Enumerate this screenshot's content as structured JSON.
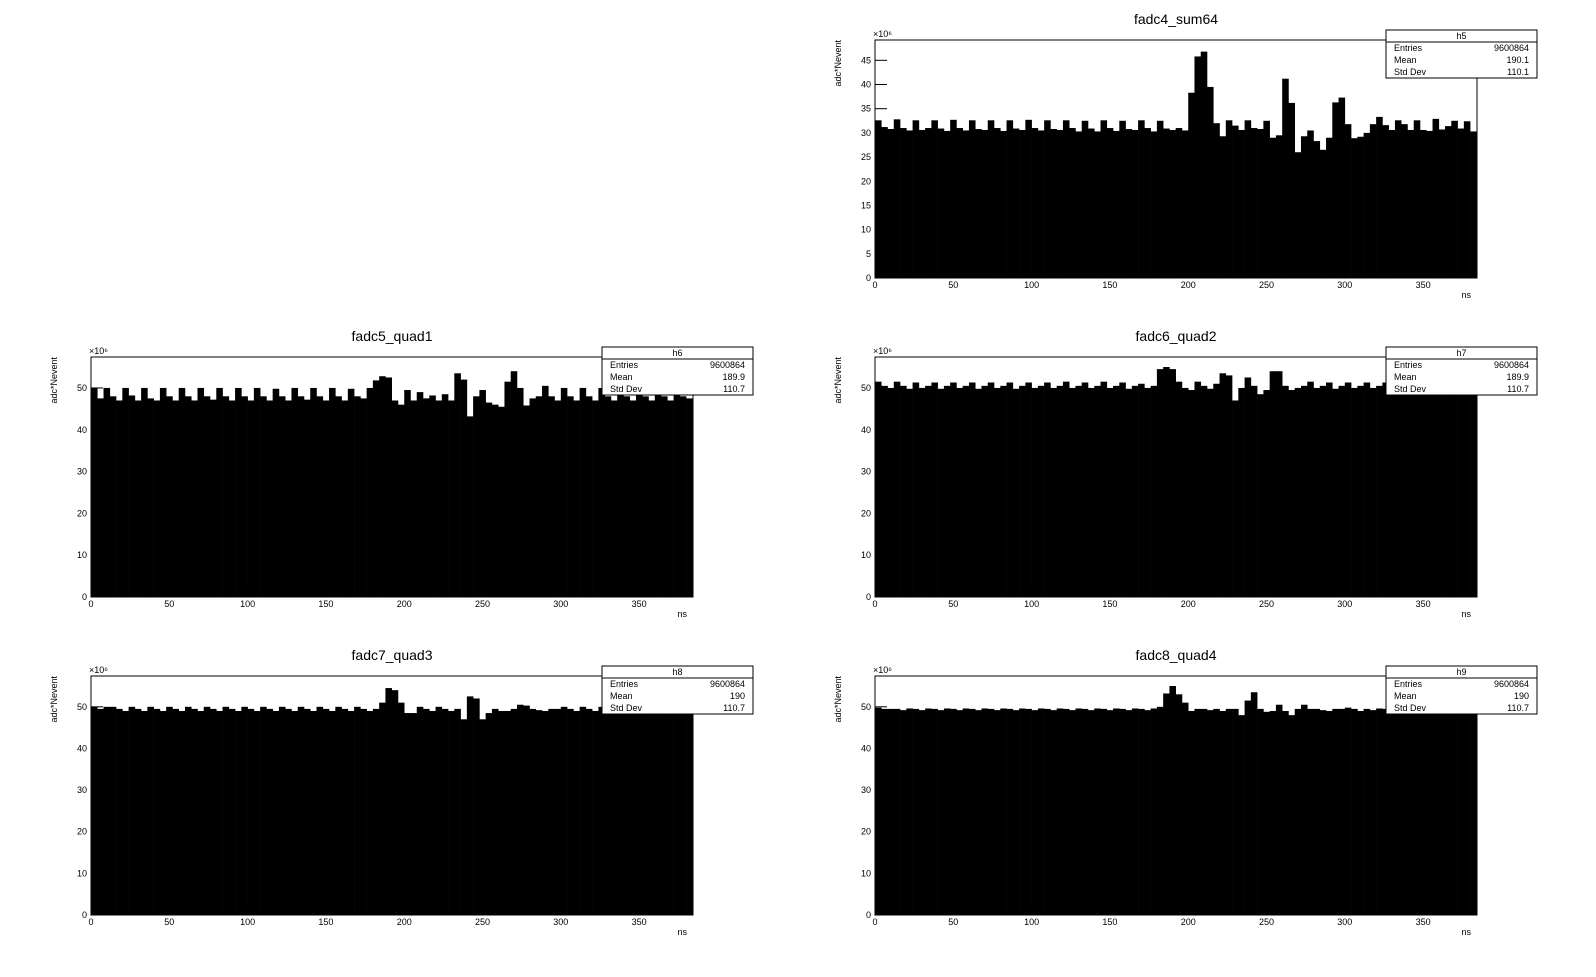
{
  "chart_data": [
    {
      "type": "histogram",
      "title": "fadc4_sum64",
      "x_label": "ns",
      "y_label": "adc*Nevent",
      "y_multiplier": "×10⁶",
      "color": "#000000",
      "stats": {
        "name": "h5",
        "rows": [
          [
            "Entries",
            "9600864"
          ],
          [
            "Mean",
            "190.1"
          ],
          [
            "Std Dev",
            "110.1"
          ]
        ]
      },
      "xlim": [
        0,
        384.4
      ],
      "xticks": [
        0,
        50,
        100,
        150,
        200,
        250,
        300,
        350
      ],
      "ylim": [
        0,
        49.2
      ],
      "yticks": [
        0,
        5,
        10,
        15,
        20,
        25,
        30,
        35,
        40,
        45
      ],
      "bins": [
        0,
        4,
        8,
        12,
        16,
        20,
        24,
        28,
        32,
        36,
        40,
        44,
        48,
        52,
        56,
        60,
        64,
        68,
        72,
        76,
        80,
        84,
        88,
        92,
        96,
        100,
        104,
        108,
        112,
        116,
        120,
        124,
        128,
        132,
        136,
        140,
        144,
        148,
        152,
        156,
        160,
        164,
        168,
        172,
        176,
        180,
        184,
        188,
        192,
        196,
        200,
        204,
        208,
        212,
        216,
        220,
        224,
        228,
        232,
        236,
        240,
        244,
        248,
        252,
        256,
        260,
        264,
        268,
        272,
        276,
        280,
        284,
        288,
        292,
        296,
        300,
        304,
        308,
        312,
        316,
        320,
        324,
        328,
        332,
        336,
        340,
        344,
        348,
        352,
        356,
        360,
        364,
        368,
        372,
        376,
        380,
        384
      ],
      "values": [
        32.6,
        31.2,
        30.8,
        32.8,
        31.0,
        30.5,
        32.6,
        30.6,
        31.0,
        32.6,
        30.9,
        30.4,
        32.7,
        31.0,
        30.5,
        32.6,
        30.8,
        30.6,
        32.6,
        31.0,
        30.4,
        32.6,
        30.9,
        30.6,
        32.7,
        31.0,
        30.5,
        32.6,
        30.8,
        30.6,
        32.6,
        31.0,
        30.3,
        32.5,
        30.9,
        30.3,
        32.6,
        31.0,
        30.4,
        32.5,
        30.8,
        30.6,
        32.6,
        31.0,
        30.3,
        32.5,
        30.9,
        30.6,
        31.0,
        30.5,
        38.3,
        45.8,
        46.8,
        39.5,
        32.0,
        29.3,
        32.6,
        31.5,
        30.6,
        32.6,
        31.0,
        30.8,
        32.5,
        29.0,
        29.5,
        41.2,
        36.2,
        26.0,
        29.3,
        30.5,
        28.3,
        26.5,
        29.0,
        36.3,
        37.3,
        31.8,
        28.9,
        29.2,
        30.0,
        31.8,
        33.3,
        31.6,
        30.6,
        32.6,
        31.8,
        30.6,
        32.6,
        30.6,
        30.4,
        32.9,
        30.7,
        31.4,
        32.5,
        30.9,
        32.4,
        30.3
      ]
    },
    {
      "type": "histogram",
      "title": "fadc5_quad1",
      "x_label": "ns",
      "y_label": "adc*Nevent",
      "y_multiplier": "×10⁶",
      "color": "#000000",
      "stats": {
        "name": "h6",
        "rows": [
          [
            "Entries",
            "9600864"
          ],
          [
            "Mean",
            "189.9"
          ],
          [
            "Std Dev",
            "110.7"
          ]
        ]
      },
      "xlim": [
        0,
        384.4
      ],
      "xticks": [
        0,
        50,
        100,
        150,
        200,
        250,
        300,
        350
      ],
      "ylim": [
        0,
        57.4
      ],
      "yticks": [
        0,
        10,
        20,
        30,
        40,
        50
      ],
      "bins": [
        0,
        4,
        8,
        12,
        16,
        20,
        24,
        28,
        32,
        36,
        40,
        44,
        48,
        52,
        56,
        60,
        64,
        68,
        72,
        76,
        80,
        84,
        88,
        92,
        96,
        100,
        104,
        108,
        112,
        116,
        120,
        124,
        128,
        132,
        136,
        140,
        144,
        148,
        152,
        156,
        160,
        164,
        168,
        172,
        176,
        180,
        184,
        188,
        192,
        196,
        200,
        204,
        208,
        212,
        216,
        220,
        224,
        228,
        232,
        236,
        240,
        244,
        248,
        252,
        256,
        260,
        264,
        268,
        272,
        276,
        280,
        284,
        288,
        292,
        296,
        300,
        304,
        308,
        312,
        316,
        320,
        324,
        328,
        332,
        336,
        340,
        344,
        348,
        352,
        356,
        360,
        364,
        368,
        372,
        376,
        380,
        384
      ],
      "values": [
        50.0,
        47.5,
        50.0,
        48.0,
        47.0,
        50.0,
        48.2,
        47.0,
        50.0,
        47.5,
        47.0,
        50.0,
        48.0,
        47.0,
        50.0,
        48.0,
        47.0,
        50.0,
        48.0,
        47.2,
        50.0,
        48.0,
        47.0,
        50.0,
        48.0,
        47.0,
        50.0,
        48.0,
        47.0,
        49.8,
        48.0,
        47.0,
        50.0,
        48.0,
        47.2,
        50.0,
        48.0,
        47.0,
        50.0,
        48.0,
        47.0,
        49.8,
        48.0,
        47.5,
        50.0,
        51.8,
        52.8,
        52.5,
        47.0,
        46.0,
        49.5,
        47.0,
        49.0,
        47.5,
        48.2,
        47.0,
        48.5,
        47.0,
        53.5,
        52.0,
        43.2,
        48.0,
        49.5,
        46.5,
        46.0,
        45.5,
        51.5,
        54.0,
        50.0,
        45.8,
        47.5,
        48.0,
        50.5,
        48.0,
        47.0,
        50.0,
        48.0,
        47.0,
        50.0,
        48.0,
        47.0,
        50.0,
        48.0,
        47.0,
        50.0,
        48.0,
        47.0,
        50.0,
        48.0,
        47.0,
        50.0,
        48.0,
        47.0,
        49.5,
        48.0,
        47.5
      ]
    },
    {
      "type": "histogram",
      "title": "fadc6_quad2",
      "x_label": "ns",
      "y_label": "adc*Nevent",
      "y_multiplier": "×10⁶",
      "color": "#000000",
      "stats": {
        "name": "h7",
        "rows": [
          [
            "Entries",
            "9600864"
          ],
          [
            "Mean",
            "189.9"
          ],
          [
            "Std Dev",
            "110.7"
          ]
        ]
      },
      "xlim": [
        0,
        384.4
      ],
      "xticks": [
        0,
        50,
        100,
        150,
        200,
        250,
        300,
        350
      ],
      "ylim": [
        0,
        57.4
      ],
      "yticks": [
        0,
        10,
        20,
        30,
        40,
        50
      ],
      "bins": [
        0,
        4,
        8,
        12,
        16,
        20,
        24,
        28,
        32,
        36,
        40,
        44,
        48,
        52,
        56,
        60,
        64,
        68,
        72,
        76,
        80,
        84,
        88,
        92,
        96,
        100,
        104,
        108,
        112,
        116,
        120,
        124,
        128,
        132,
        136,
        140,
        144,
        148,
        152,
        156,
        160,
        164,
        168,
        172,
        176,
        180,
        184,
        188,
        192,
        196,
        200,
        204,
        208,
        212,
        216,
        220,
        224,
        228,
        232,
        236,
        240,
        244,
        248,
        252,
        256,
        260,
        264,
        268,
        272,
        276,
        280,
        284,
        288,
        292,
        296,
        300,
        304,
        308,
        312,
        316,
        320,
        324,
        328,
        332,
        336,
        340,
        344,
        348,
        352,
        356,
        360,
        364,
        368,
        372,
        376,
        380,
        384
      ],
      "values": [
        51.5,
        50.5,
        50.0,
        51.5,
        50.5,
        49.8,
        51.3,
        50.0,
        50.5,
        51.3,
        49.8,
        50.5,
        51.3,
        50.0,
        50.5,
        51.3,
        49.8,
        50.5,
        51.3,
        50.0,
        50.5,
        51.3,
        49.8,
        50.5,
        51.3,
        50.0,
        50.5,
        51.3,
        50.0,
        50.5,
        51.5,
        50.0,
        50.5,
        51.3,
        50.0,
        50.5,
        51.5,
        50.0,
        50.5,
        51.3,
        49.8,
        50.5,
        51.0,
        50.0,
        50.5,
        54.5,
        55.0,
        54.5,
        51.5,
        50.0,
        49.5,
        51.5,
        50.5,
        49.8,
        51.0,
        53.5,
        53.0,
        47.0,
        50.0,
        52.5,
        50.5,
        48.5,
        49.5,
        54.0,
        54.0,
        50.5,
        49.5,
        50.0,
        50.5,
        51.5,
        50.0,
        50.5,
        51.3,
        49.8,
        50.5,
        51.3,
        50.0,
        50.5,
        51.3,
        50.0,
        50.5,
        51.3,
        50.0,
        50.5,
        51.3,
        50.0,
        50.5,
        51.3,
        50.0,
        50.5,
        51.3,
        50.0,
        50.5,
        51.3,
        50.0,
        50.5
      ]
    },
    {
      "type": "histogram",
      "title": "fadc7_quad3",
      "x_label": "ns",
      "y_label": "adc*Nevent",
      "y_multiplier": "×10⁶",
      "color": "#000000",
      "stats": {
        "name": "h8",
        "rows": [
          [
            "Entries",
            "9600864"
          ],
          [
            "Mean",
            "190"
          ],
          [
            "Std Dev",
            "110.7"
          ]
        ]
      },
      "xlim": [
        0,
        384.4
      ],
      "xticks": [
        0,
        50,
        100,
        150,
        200,
        250,
        300,
        350
      ],
      "ylim": [
        0,
        57.4
      ],
      "yticks": [
        0,
        10,
        20,
        30,
        40,
        50
      ],
      "bins": [
        0,
        4,
        8,
        12,
        16,
        20,
        24,
        28,
        32,
        36,
        40,
        44,
        48,
        52,
        56,
        60,
        64,
        68,
        72,
        76,
        80,
        84,
        88,
        92,
        96,
        100,
        104,
        108,
        112,
        116,
        120,
        124,
        128,
        132,
        136,
        140,
        144,
        148,
        152,
        156,
        160,
        164,
        168,
        172,
        176,
        180,
        184,
        188,
        192,
        196,
        200,
        204,
        208,
        212,
        216,
        220,
        224,
        228,
        232,
        236,
        240,
        244,
        248,
        252,
        256,
        260,
        264,
        268,
        272,
        276,
        280,
        284,
        288,
        292,
        296,
        300,
        304,
        308,
        312,
        316,
        320,
        324,
        328,
        332,
        336,
        340,
        344,
        348,
        352,
        356,
        360,
        364,
        368,
        372,
        376,
        380,
        384
      ],
      "values": [
        50.0,
        49.5,
        50.0,
        50.0,
        49.5,
        49.0,
        50.0,
        49.5,
        49.0,
        50.0,
        49.5,
        49.0,
        50.0,
        49.5,
        49.0,
        50.0,
        49.5,
        49.0,
        50.0,
        49.5,
        49.0,
        50.0,
        49.5,
        49.0,
        50.0,
        49.5,
        49.0,
        50.0,
        49.5,
        49.0,
        50.0,
        49.5,
        49.0,
        50.0,
        49.5,
        49.0,
        50.0,
        49.5,
        49.0,
        50.0,
        49.5,
        49.0,
        50.0,
        49.5,
        49.0,
        49.5,
        51.0,
        54.5,
        54.0,
        51.0,
        48.5,
        48.5,
        50.0,
        49.5,
        49.0,
        50.0,
        49.5,
        49.0,
        49.5,
        47.0,
        52.5,
        52.0,
        47.0,
        48.5,
        49.5,
        49.0,
        49.0,
        49.5,
        50.5,
        50.3,
        49.5,
        49.2,
        49.0,
        49.5,
        49.5,
        50.0,
        49.5,
        49.0,
        50.0,
        49.5,
        49.0,
        50.0,
        49.5,
        49.0,
        50.0,
        49.5,
        49.0,
        50.0,
        49.5,
        49.0,
        50.0,
        49.5,
        49.0,
        50.0,
        49.5,
        49.0
      ]
    },
    {
      "type": "histogram",
      "title": "fadc8_quad4",
      "x_label": "ns",
      "y_label": "adc*Nevent",
      "y_multiplier": "×10⁶",
      "color": "#000000",
      "stats": {
        "name": "h9",
        "rows": [
          [
            "Entries",
            "9600864"
          ],
          [
            "Mean",
            "190"
          ],
          [
            "Std Dev",
            "110.7"
          ]
        ]
      },
      "xlim": [
        0,
        384.4
      ],
      "xticks": [
        0,
        50,
        100,
        150,
        200,
        250,
        300,
        350
      ],
      "ylim": [
        0,
        57.4
      ],
      "yticks": [
        0,
        10,
        20,
        30,
        40,
        50
      ],
      "bins": [
        0,
        4,
        8,
        12,
        16,
        20,
        24,
        28,
        32,
        36,
        40,
        44,
        48,
        52,
        56,
        60,
        64,
        68,
        72,
        76,
        80,
        84,
        88,
        92,
        96,
        100,
        104,
        108,
        112,
        116,
        120,
        124,
        128,
        132,
        136,
        140,
        144,
        148,
        152,
        156,
        160,
        164,
        168,
        172,
        176,
        180,
        184,
        188,
        192,
        196,
        200,
        204,
        208,
        212,
        216,
        220,
        224,
        228,
        232,
        236,
        240,
        244,
        248,
        252,
        256,
        260,
        264,
        268,
        272,
        276,
        280,
        284,
        288,
        292,
        296,
        300,
        304,
        308,
        312,
        316,
        320,
        324,
        328,
        332,
        336,
        340,
        344,
        348,
        352,
        356,
        360,
        364,
        368,
        372,
        376,
        380,
        384
      ],
      "values": [
        49.8,
        49.5,
        49.5,
        49.5,
        49.2,
        49.6,
        49.5,
        49.2,
        49.6,
        49.5,
        49.2,
        49.6,
        49.5,
        49.2,
        49.6,
        49.5,
        49.2,
        49.6,
        49.5,
        49.2,
        49.6,
        49.5,
        49.2,
        49.6,
        49.5,
        49.2,
        49.6,
        49.5,
        49.2,
        49.6,
        49.5,
        49.2,
        49.6,
        49.5,
        49.2,
        49.6,
        49.5,
        49.2,
        49.6,
        49.5,
        49.2,
        49.6,
        49.5,
        49.2,
        49.6,
        50.0,
        53.2,
        55.0,
        53.0,
        51.0,
        49.0,
        49.5,
        49.5,
        49.2,
        49.5,
        49.0,
        49.5,
        49.5,
        48.0,
        51.5,
        53.5,
        49.5,
        48.8,
        49.0,
        50.5,
        49.0,
        48.0,
        49.5,
        50.5,
        49.5,
        49.5,
        49.2,
        49.0,
        49.5,
        49.5,
        49.8,
        49.5,
        49.0,
        49.5,
        49.2,
        49.6,
        49.5,
        49.2,
        49.6,
        49.5,
        49.2,
        49.6,
        49.5,
        49.2,
        49.6,
        49.5,
        49.2,
        49.6,
        49.5,
        49.2,
        49.6
      ]
    }
  ]
}
